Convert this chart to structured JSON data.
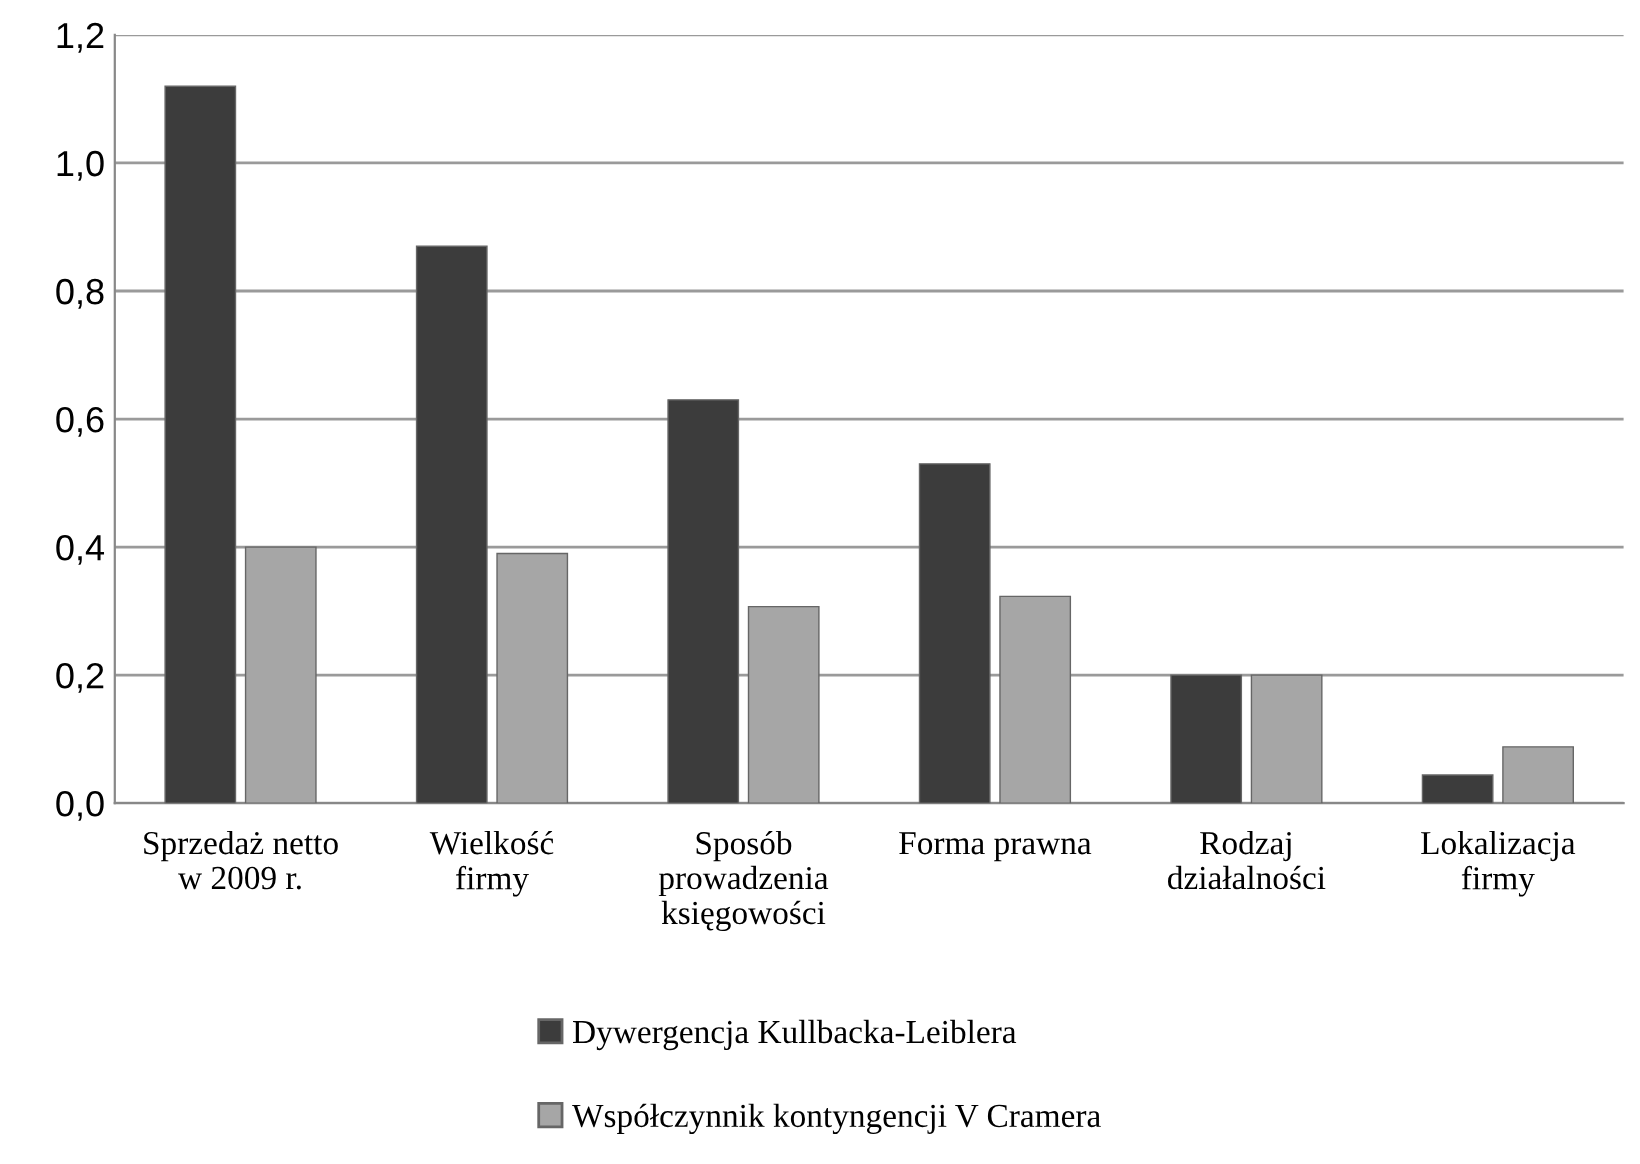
{
  "chart_data": {
    "type": "bar",
    "categories": [
      "Sprzedaż netto\nw 2009 r.",
      "Wielkość\nfirmy",
      "Sposób\nprowadzenia\nksięgowości",
      "Forma prawna",
      "Rodzaj\ndziałalności",
      "Lokalizacja\nfirmy"
    ],
    "series": [
      {
        "name": "Dywergencja Kullbacka-Leiblera",
        "color": "#3c3c3c",
        "values": [
          1.12,
          0.87,
          0.63,
          0.53,
          0.2,
          0.044
        ]
      },
      {
        "name": "Współczynnik kontyngencji V Cramera",
        "color": "#a6a6a6",
        "values": [
          0.4,
          0.39,
          0.307,
          0.323,
          0.2,
          0.088
        ]
      }
    ],
    "ylim": [
      0,
      1.2
    ],
    "yticks": [
      {
        "value": 0,
        "label": "0,0"
      },
      {
        "value": 0.2,
        "label": "0,2"
      },
      {
        "value": 0.4,
        "label": "0,4"
      },
      {
        "value": 0.6,
        "label": "0,6"
      },
      {
        "value": 0.8,
        "label": "0,8"
      },
      {
        "value": 1.0,
        "label": "1,0"
      },
      {
        "value": 1.2,
        "label": "1,2"
      }
    ],
    "grid": "y",
    "legend": "bottom"
  }
}
